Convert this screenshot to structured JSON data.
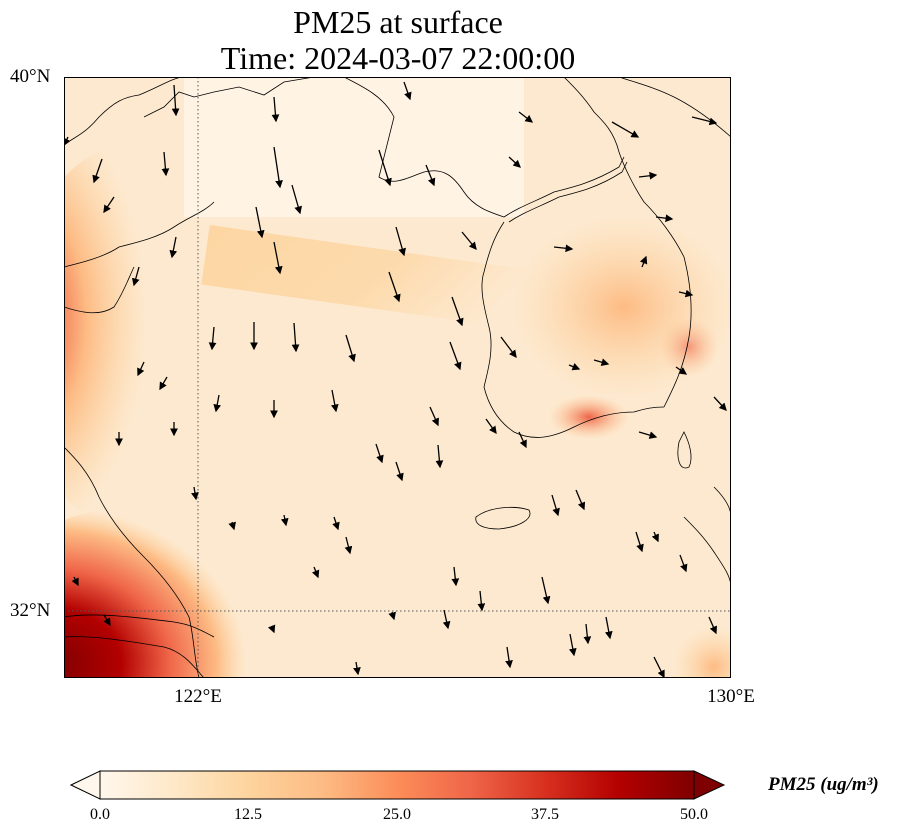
{
  "title": {
    "line1": "PM25 at surface",
    "line2": "Time: 2024-03-07 22:00:00"
  },
  "map": {
    "lat_range": [
      31.0,
      40.0
    ],
    "lon_range": [
      120.0,
      130.0
    ],
    "lat_labels": [
      {
        "value": 40,
        "text": "40°N"
      },
      {
        "value": 32,
        "text": "32°N"
      }
    ],
    "lon_labels": [
      {
        "value": 122,
        "text": "122°E"
      },
      {
        "value": 130,
        "text": "130°E"
      }
    ],
    "gridlines": {
      "lat": [
        32
      ],
      "lon": [
        122
      ],
      "style": "dotted"
    },
    "region": "Yellow Sea / Korean Peninsula"
  },
  "colorbar": {
    "label": "PM25 (ug/m$^3$)",
    "label_display": "PM25 (ug/m³)",
    "range": [
      0,
      50
    ],
    "ticks": [
      "0.0",
      "12.5",
      "25.0",
      "37.5",
      "50.0"
    ],
    "extend": "both",
    "colormap": "OrRd",
    "colors": [
      "#fff7ec",
      "#fee8c8",
      "#fdd49e",
      "#fdbb84",
      "#fc8d59",
      "#ef6548",
      "#d7301f",
      "#b30000",
      "#7f0000"
    ]
  },
  "wind_arrows": "present"
}
